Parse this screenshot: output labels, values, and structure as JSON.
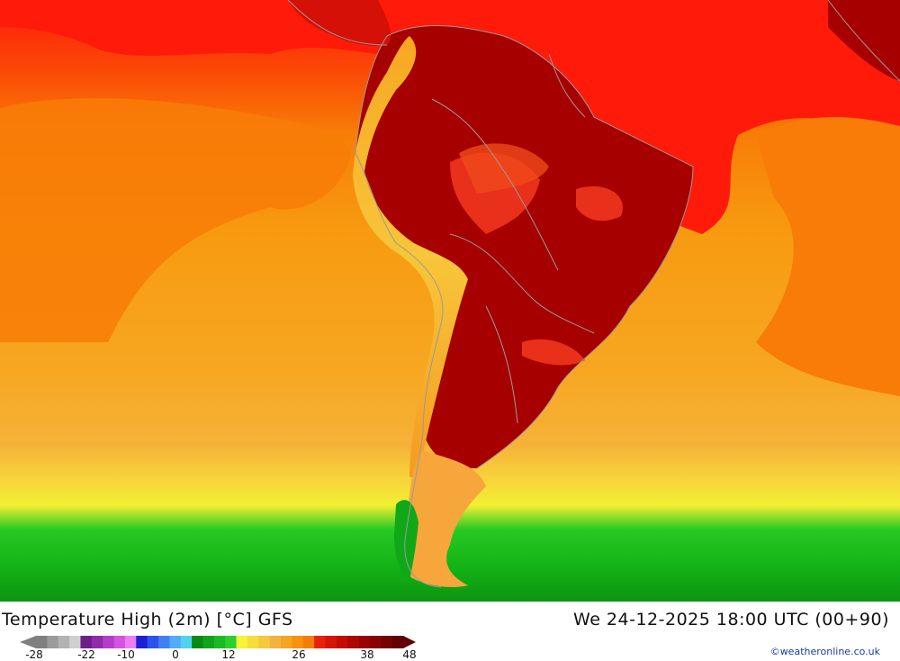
{
  "map": {
    "title": "Temperature High (2m) [°C] GFS",
    "datetime": "We 24-12-2025 18:00 UTC (00+90)",
    "credit": "©weatheronline.co.uk",
    "legend": {
      "ticks": [
        "-28",
        "-22",
        "-10",
        "0",
        "12",
        "26",
        "38",
        "48"
      ],
      "colors": [
        "#7f7f7f",
        "#9b9b9b",
        "#b3b3b3",
        "#cfcfcf",
        "#6e1e8a",
        "#8f2ba8",
        "#b23ccb",
        "#d453e0",
        "#ee7cf3",
        "#1d1fd6",
        "#2b52ee",
        "#3f7ff5",
        "#53aaf7",
        "#4fd3f0",
        "#0a8a12",
        "#11a31a",
        "#1cba22",
        "#2ccf2c",
        "#f7f23a",
        "#f7dd3a",
        "#f5c93e",
        "#f2b33f",
        "#f6a41e",
        "#f79210",
        "#f57d08",
        "#e82208",
        "#d51405",
        "#c10b04",
        "#ad0704",
        "#990503",
        "#860402",
        "#740302",
        "#600201"
      ]
    },
    "colors": {
      "ocean_warm": "#f79a10",
      "ocean_orange": "#f87c07",
      "ocean_red": "#ff1a00",
      "land_darkred": "#a60000",
      "land_red": "#e0150f",
      "andes_yellow": "#f7c63a",
      "cold_green": "#16c41a",
      "border_gray": "#9a9a9a"
    }
  }
}
